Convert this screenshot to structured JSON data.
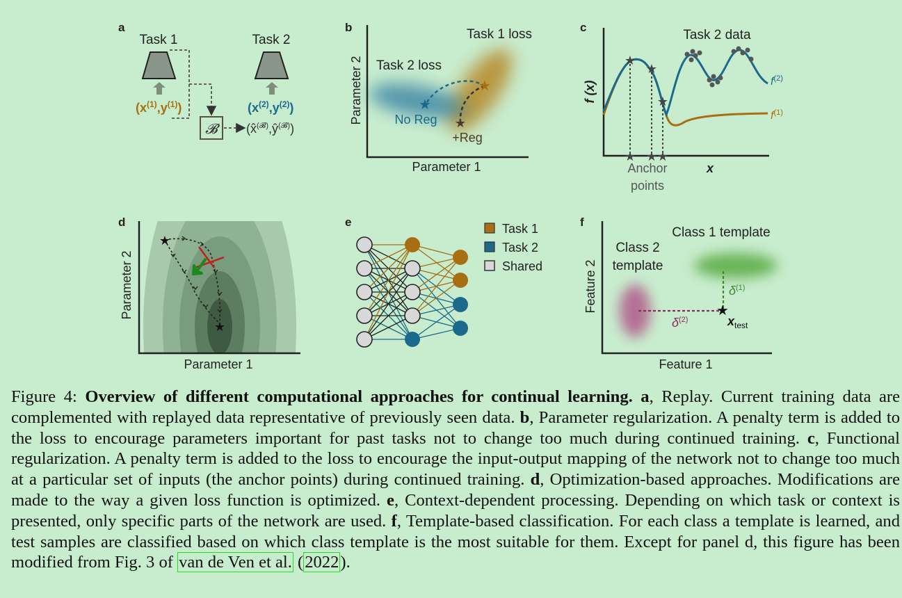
{
  "panels": {
    "a": {
      "letter": "a",
      "task1": "Task 1",
      "task2": "Task 2",
      "x1": "(x",
      "x1sup": "(1)",
      "y1": ",y",
      "y1sup": "(1)",
      "close1": ")",
      "x2": "(x",
      "x2sup": "(2)",
      "y2": ",y",
      "y2sup": "(2)",
      "close2": ")",
      "buffer": "𝓑",
      "replay": "(x̂",
      "replaysup": "(𝓑)",
      "replaymid": ",ŷ",
      "replaysup2": "(𝓑)",
      "replayclose": ")",
      "colors": {
        "task1": "#a86e12",
        "task2": "#1b6a8c",
        "arrow": "#7a8a7a"
      }
    },
    "b": {
      "letter": "b",
      "ylabel": "Parameter 2",
      "xlabel": "Parameter 1",
      "task1_loss": "Task 1 loss",
      "task2_loss": "Task 2 loss",
      "no_reg": "No Reg",
      "reg": "+Reg"
    },
    "c": {
      "letter": "c",
      "ylabel": "f (x)",
      "xlabel": "x",
      "task2_data": "Task 2 data",
      "f2": "f",
      "f2sup": "(2)",
      "f1": "f",
      "f1sup": "(1)",
      "anchor1": "Anchor",
      "anchor2": "points"
    },
    "d": {
      "letter": "d",
      "ylabel": "Parameter 2",
      "xlabel": "Parameter 1"
    },
    "e": {
      "letter": "e",
      "legend": [
        "Task 1",
        "Task 2",
        "Shared"
      ],
      "colors": {
        "task1": "#a86e12",
        "task2": "#1b6a8c",
        "shared": "#d8d8d8"
      }
    },
    "f": {
      "letter": "f",
      "ylabel": "Feature 2",
      "xlabel": "Feature 1",
      "class1": "Class 1 template",
      "class2a": "Class 2",
      "class2b": "template",
      "delta1": "δ",
      "delta1sup": "(1)",
      "delta2": "δ",
      "delta2sup": "(2)",
      "xtest": "x",
      "xtestsub": "test"
    }
  },
  "caption": {
    "fig_label": "Figure 4: ",
    "title": "Overview of different computational approaches for continual learning.",
    "a_letter": "a",
    "a_text": ", Replay. Current training data are complemented with replayed data representative of previously seen data. ",
    "b_letter": "b",
    "b_text": ", Parameter regularization. A penalty term is added to the loss to encourage parameters important for past tasks not to change too much during continued training. ",
    "c_letter": "c",
    "c_text": ", Functional regularization. A penalty term is added to the loss to encourage the input-output mapping of the network not to change too much at a particular set of inputs (the anchor points) during continued training. ",
    "d_letter": "d",
    "d_text": ", Optimization-based approaches. Modifications are made to the way a given loss function is optimized. ",
    "e_letter": "e",
    "e_text": ", Context-dependent processing. Depending on which task or context is presented, only specific parts of the network are used. ",
    "f_letter": "f",
    "f_text": ", Template-based classification. For each class a template is learned, and test samples are classified based on which class template is the most suitable for them. Except for panel d, this figure has been modified from Fig. 3 of ",
    "cite_authors": "van de Ven et al.",
    "cite_open": " (",
    "cite_year": "2022",
    "cite_close": ")."
  }
}
